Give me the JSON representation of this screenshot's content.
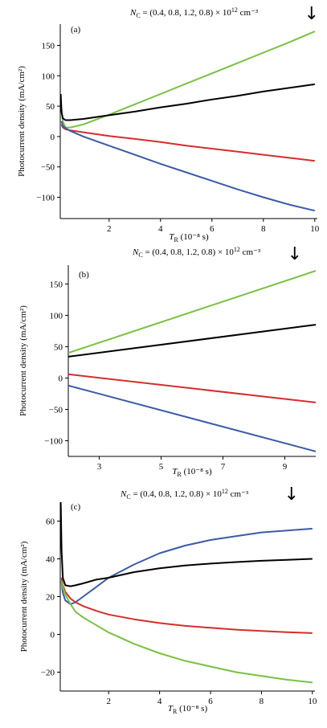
{
  "chart_data": [
    {
      "type": "line",
      "panel_label": "(a)",
      "annotation": {
        "symbol": "N",
        "sub": "C",
        "text": " = (0.4, 0.8, 1.2, 0.8) × 10",
        "sup": "12",
        "unit": " cm⁻³"
      },
      "arrow": "↓",
      "ylabel": "Photocurrent density (mA/cm²)",
      "xlabel": {
        "symbol": "T",
        "sub": "R",
        "rest": " (10⁻⁸ s)"
      },
      "xlim": [
        0.1,
        10.1
      ],
      "ylim": [
        -135,
        185
      ],
      "xticks": [
        2,
        4,
        6,
        8,
        10
      ],
      "xtick_labels": [
        "2",
        "4",
        "6",
        "8",
        "10"
      ],
      "yticks": [
        -100,
        -50,
        0,
        50,
        100,
        150
      ],
      "ytick_labels": [
        "−100",
        "−50",
        "0",
        "50",
        "100",
        "150"
      ],
      "series": [
        {
          "color": "#7ac143",
          "x": [
            0.15,
            0.2,
            0.3,
            0.5,
            1,
            2,
            3,
            4,
            5,
            6,
            7,
            8,
            9,
            10
          ],
          "y": [
            45,
            25,
            15,
            15,
            20,
            36,
            53,
            70,
            87,
            104,
            121,
            138,
            155,
            173
          ]
        },
        {
          "color": "#000000",
          "x": [
            0.12,
            0.15,
            0.2,
            0.3,
            0.5,
            1,
            2,
            3,
            4,
            5,
            6,
            7,
            8,
            9,
            10
          ],
          "y": [
            70,
            40,
            30,
            27,
            27,
            29,
            35,
            41,
            48,
            54,
            61,
            67,
            74,
            80,
            86
          ]
        },
        {
          "color": "#d62d2d",
          "x": [
            0.15,
            0.2,
            0.3,
            0.5,
            1,
            2,
            3,
            4,
            5,
            6,
            7,
            8,
            9,
            10
          ],
          "y": [
            20,
            15,
            12,
            10,
            7,
            1,
            -4,
            -9,
            -15,
            -20,
            -25,
            -30,
            -35,
            -40
          ]
        },
        {
          "color": "#3a5ba6",
          "x": [
            0.15,
            0.2,
            0.3,
            0.5,
            1,
            2,
            3,
            4,
            5,
            6,
            7,
            8,
            9,
            10
          ],
          "y": [
            25,
            18,
            14,
            9,
            0,
            -15,
            -30,
            -45,
            -59,
            -73,
            -87,
            -100,
            -112,
            -122
          ]
        }
      ]
    },
    {
      "type": "line",
      "panel_label": "(b)",
      "annotation": {
        "symbol": "N",
        "sub": "C",
        "text": " = (0.4, 0.8, 1.2, 0.8) × 10",
        "sup": "12",
        "unit": " cm⁻³"
      },
      "arrow": "↓",
      "ylabel": "Photocurrent density (mA/cm²)",
      "xlabel": {
        "symbol": "T",
        "sub": "R",
        "rest": " (10⁻⁸ s)"
      },
      "xlim": [
        2,
        10
      ],
      "ylim": [
        -125,
        180
      ],
      "xticks": [
        3,
        5,
        7,
        9
      ],
      "xtick_labels": [
        "3",
        "5",
        "7",
        "9"
      ],
      "yticks": [
        -100,
        -50,
        0,
        50,
        100,
        150
      ],
      "ytick_labels": [
        "−100",
        "−50",
        "0",
        "50",
        "100",
        "150"
      ],
      "series": [
        {
          "color": "#7ac143",
          "x": [
            2,
            10
          ],
          "y": [
            40,
            171
          ]
        },
        {
          "color": "#000000",
          "x": [
            2,
            10
          ],
          "y": [
            34,
            85
          ]
        },
        {
          "color": "#d62d2d",
          "x": [
            2,
            10
          ],
          "y": [
            6,
            -39
          ]
        },
        {
          "color": "#3a5ba6",
          "x": [
            2,
            10
          ],
          "y": [
            -12,
            -117
          ]
        }
      ]
    },
    {
      "type": "line",
      "panel_label": "(c)",
      "annotation": {
        "symbol": "N",
        "sub": "C",
        "text": " = (0.4, 0.8, 1.2, 0.8) × 10",
        "sup": "12",
        "unit": " cm⁻³"
      },
      "arrow": "↓",
      "ylabel": "Photocurrent density (mA/cm²)",
      "xlabel": {
        "symbol": "T",
        "sub": "R",
        "rest": " (10⁻⁸ s)"
      },
      "xlim": [
        0.1,
        10.1
      ],
      "ylim": [
        -30,
        70
      ],
      "xticks": [
        2,
        4,
        6,
        8,
        10
      ],
      "xtick_labels": [
        "2",
        "4",
        "6",
        "8",
        "10"
      ],
      "yticks": [
        -20,
        0,
        20,
        40,
        60
      ],
      "ytick_labels": [
        "−20",
        "0",
        "20",
        "40",
        "60"
      ],
      "series": [
        {
          "color": "#3a5ba6",
          "x": [
            0.15,
            0.2,
            0.3,
            0.5,
            0.7,
            1,
            1.5,
            2,
            3,
            4,
            5,
            6,
            7,
            8,
            9,
            10
          ],
          "y": [
            28,
            22,
            18,
            16,
            17,
            20,
            25,
            30,
            37,
            43,
            47,
            50,
            52,
            54,
            55,
            56
          ]
        },
        {
          "color": "#000000",
          "x": [
            0.12,
            0.15,
            0.2,
            0.3,
            0.5,
            0.7,
            1,
            1.5,
            2,
            3,
            4,
            5,
            6,
            7,
            8,
            9,
            10
          ],
          "y": [
            70,
            45,
            30,
            26,
            25.5,
            26,
            27,
            29,
            30,
            33,
            35,
            36.5,
            37.5,
            38.3,
            39,
            39.5,
            40
          ]
        },
        {
          "color": "#d62d2d",
          "x": [
            0.15,
            0.2,
            0.3,
            0.5,
            0.7,
            1,
            1.5,
            2,
            3,
            4,
            5,
            6,
            7,
            8,
            9,
            10
          ],
          "y": [
            30,
            26,
            22.5,
            19,
            17,
            15,
            12.5,
            10.5,
            8,
            6,
            4.5,
            3.5,
            2.5,
            1.8,
            1.2,
            0.7
          ]
        },
        {
          "color": "#7ac143",
          "x": [
            0.15,
            0.2,
            0.3,
            0.5,
            0.7,
            1,
            1.5,
            2,
            3,
            4,
            5,
            6,
            7,
            8,
            9,
            10
          ],
          "y": [
            28,
            25,
            21,
            16,
            12,
            9,
            5,
            1,
            -5,
            -10,
            -14,
            -17,
            -20,
            -22,
            -24,
            -25.5
          ]
        }
      ]
    }
  ]
}
